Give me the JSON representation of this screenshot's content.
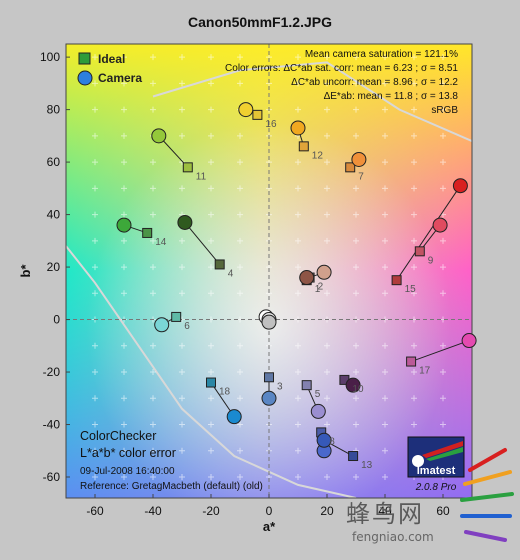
{
  "chart_data": {
    "type": "scatter",
    "title": "Canon50mmF1.2.JPG",
    "xlabel": "a*",
    "ylabel": "b*",
    "xlim": [
      -70,
      70
    ],
    "ylim": [
      -68,
      105
    ],
    "xticks": [
      -60,
      -40,
      -20,
      0,
      20,
      40,
      60
    ],
    "yticks": [
      -60,
      -40,
      -20,
      0,
      20,
      40,
      60,
      80,
      100
    ],
    "grid": true,
    "legend_position": "top-left",
    "legend": [
      {
        "label": "Ideal",
        "marker": "square"
      },
      {
        "label": "Camera",
        "marker": "circle"
      }
    ],
    "annotations": [
      "Mean camera saturation = 121.1%",
      "Color errors:  ΔC*ab sat. corr:  mean = 6.23 ;  σ = 8.51",
      "ΔC*ab uncorr:  mean = 8.96 ;  σ = 12.2",
      "ΔE*ab:  mean = 11.8 ;  σ = 13.8",
      "sRGB"
    ],
    "bottom_left_text": [
      "ColorChecker",
      "L*a*b* color error",
      "09-Jul-2008 16:40:00",
      "Reference: GretagMacbeth (default) (old)"
    ],
    "badge": {
      "name": "Imatest",
      "version": "2.0.8 Pro"
    },
    "series": [
      {
        "name": "Ideal",
        "points": [
          {
            "id": 1,
            "x": 13,
            "y": 15,
            "color": "#8a4d3c"
          },
          {
            "id": 2,
            "x": 14,
            "y": 16,
            "color": "#c08f78"
          },
          {
            "id": 3,
            "x": 0,
            "y": -22,
            "color": "#5f77a4"
          },
          {
            "id": 4,
            "x": -17,
            "y": 21,
            "color": "#55683b"
          },
          {
            "id": 5,
            "x": 13,
            "y": -25,
            "color": "#8381b0"
          },
          {
            "id": 6,
            "x": -32,
            "y": 1,
            "color": "#5fbaa6"
          },
          {
            "id": 7,
            "x": 28,
            "y": 58,
            "color": "#d98a3c"
          },
          {
            "id": 8,
            "x": 18,
            "y": -43,
            "color": "#4a5ca8"
          },
          {
            "id": 9,
            "x": 52,
            "y": 26,
            "color": "#c15363"
          },
          {
            "id": 10,
            "x": 26,
            "y": -23,
            "color": "#5c3e6b"
          },
          {
            "id": 11,
            "x": -28,
            "y": 58,
            "color": "#9dbe40"
          },
          {
            "id": 12,
            "x": 12,
            "y": 66,
            "color": "#e0a43a"
          },
          {
            "id": 13,
            "x": 29,
            "y": -52,
            "color": "#364b98"
          },
          {
            "id": 14,
            "x": -42,
            "y": 33,
            "color": "#4b9448"
          },
          {
            "id": 15,
            "x": 44,
            "y": 15,
            "color": "#b03c3c"
          },
          {
            "id": 16,
            "x": -4,
            "y": 78,
            "color": "#e5c435"
          },
          {
            "id": 17,
            "x": 49,
            "y": -16,
            "color": "#bb5a98"
          },
          {
            "id": 18,
            "x": -20,
            "y": -24,
            "color": "#2a87a5"
          }
        ]
      },
      {
        "name": "Camera",
        "points": [
          {
            "id": 1,
            "x": 13,
            "y": 16,
            "color": "#8e5546"
          },
          {
            "id": 2,
            "x": 19,
            "y": 18,
            "color": "#d0a08c"
          },
          {
            "id": 3,
            "x": 0,
            "y": -30,
            "color": "#5a86c4"
          },
          {
            "id": 4,
            "x": -29,
            "y": 37,
            "color": "#2f5a1f"
          },
          {
            "id": 5,
            "x": 17,
            "y": -35,
            "color": "#9a8ed0"
          },
          {
            "id": 6,
            "x": -37,
            "y": -2,
            "color": "#7ad6d6"
          },
          {
            "id": 7,
            "x": 31,
            "y": 61,
            "color": "#f0903a"
          },
          {
            "id": 8,
            "x": 19,
            "y": -50,
            "color": "#4a68cc"
          },
          {
            "id": 9,
            "x": 59,
            "y": 36,
            "color": "#e04b60"
          },
          {
            "id": 10,
            "x": 29,
            "y": -25,
            "color": "#4a1f48"
          },
          {
            "id": 11,
            "x": -38,
            "y": 70,
            "color": "#94c83a"
          },
          {
            "id": 12,
            "x": 10,
            "y": 73,
            "color": "#f0a820"
          },
          {
            "id": 13,
            "x": 19,
            "y": -46,
            "color": "#3659b8"
          },
          {
            "id": 14,
            "x": -50,
            "y": 36,
            "color": "#3da83a"
          },
          {
            "id": 15,
            "x": 66,
            "y": 51,
            "color": "#d82020"
          },
          {
            "id": 16,
            "x": -8,
            "y": 80,
            "color": "#f0d030"
          },
          {
            "id": 17,
            "x": 69,
            "y": -8,
            "color": "#e44ab0"
          },
          {
            "id": 18,
            "x": -12,
            "y": -37,
            "color": "#1a8ad0"
          },
          {
            "id": 19,
            "x": -1,
            "y": 1,
            "color": "#ffffff"
          },
          {
            "id": 20,
            "x": 0,
            "y": 0,
            "color": "#e8e8e8"
          },
          {
            "id": 21,
            "x": 0,
            "y": -1,
            "color": "#c0c0c0"
          }
        ]
      }
    ],
    "labeled_ids": [
      1,
      2,
      3,
      4,
      5,
      6,
      7,
      8,
      9,
      10,
      11,
      12,
      13,
      14,
      15,
      16,
      17,
      18
    ]
  },
  "watermark": {
    "brand_cn": "蜂鸟网",
    "url": "fengniao.com"
  }
}
